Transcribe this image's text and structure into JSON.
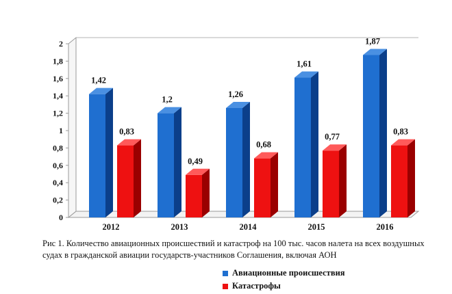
{
  "chart_data": {
    "type": "bar",
    "categories": [
      "2012",
      "2013",
      "2014",
      "2015",
      "2016"
    ],
    "series": [
      {
        "name": "Авиационные происшествия",
        "values": [
          1.42,
          1.2,
          1.26,
          1.61,
          1.87
        ],
        "labels": [
          "1,42",
          "1,2",
          "1,26",
          "1,61",
          "1,87"
        ],
        "color": "#1f6fd0",
        "side": "#0b3f8a",
        "top": "#4a90e2"
      },
      {
        "name": "Катастрофы",
        "values": [
          0.83,
          0.49,
          0.68,
          0.77,
          0.83
        ],
        "labels": [
          "0,83",
          "0,49",
          "0,68",
          "0,77",
          "0,83"
        ],
        "color": "#ee1111",
        "side": "#9a0000",
        "top": "#ff5a5a"
      }
    ],
    "yticks": [
      "0",
      "0,2",
      "0,4",
      "0,6",
      "0,8",
      "1",
      "1,2",
      "1,4",
      "1,6",
      "1,8",
      "2"
    ],
    "ylim": [
      0,
      2
    ],
    "grid": false,
    "legend_position": "bottom-right"
  },
  "caption": "Рис 1. Количество авиационных происшествий и катастроф на 100 тыс. часов налета на всех воздушных судах в гражданской авиации государств-участников Соглашения, включая АОН"
}
